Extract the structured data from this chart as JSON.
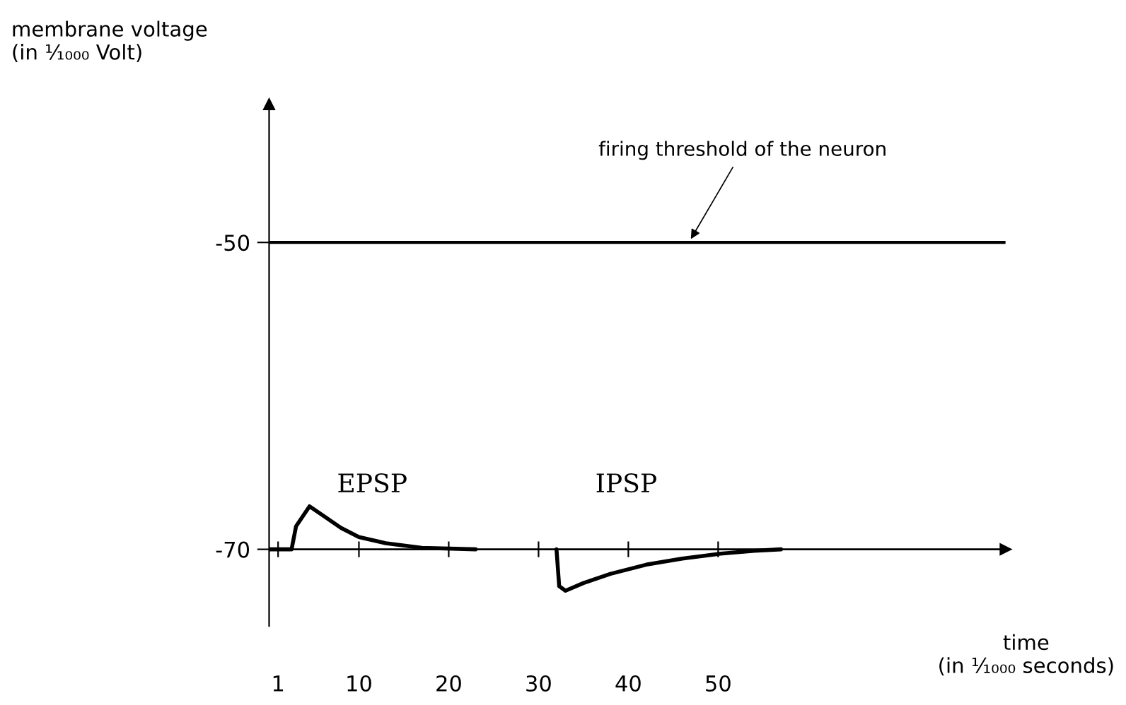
{
  "chart_data": {
    "type": "line",
    "xlabel": "time\n(in ¹⁄₁₀₀₀ seconds)",
    "ylabel": "membrane voltage\n(in ¹⁄₁₀₀₀ Volt)",
    "xlim": [
      0,
      82
    ],
    "ylim": [
      -75,
      -41
    ],
    "xticks": [
      1,
      10,
      20,
      30,
      40,
      50
    ],
    "yticks": [
      {
        "value": -70,
        "label": "-70"
      },
      {
        "value": -50,
        "label": "-50"
      }
    ],
    "grid": false,
    "legend": false,
    "marker": "none",
    "line_style": "solid",
    "series": [
      {
        "color": "#000000",
        "x": [
          0,
          2.5,
          3,
          4.5,
          6,
          8,
          10,
          13,
          17,
          23,
          27.5,
          32,
          32.3,
          33,
          35,
          38,
          42,
          46,
          50,
          54,
          57
        ],
        "values": [
          -70,
          -70,
          -68.5,
          -67.2,
          -67.8,
          -68.6,
          -69.2,
          -69.6,
          -69.9,
          -70,
          null,
          -70,
          -72.4,
          -72.7,
          -72.2,
          -71.6,
          -71,
          -70.6,
          -70.3,
          -70.1,
          -70
        ]
      }
    ],
    "ref_lines": [
      {
        "axis": "y",
        "value": -50,
        "label": "firing threshold of the neuron",
        "color": "#000000"
      },
      {
        "axis": "y",
        "value": -70,
        "label": null,
        "color": "#000000"
      }
    ],
    "annotations": [
      "EPSP",
      "IPSP"
    ]
  }
}
